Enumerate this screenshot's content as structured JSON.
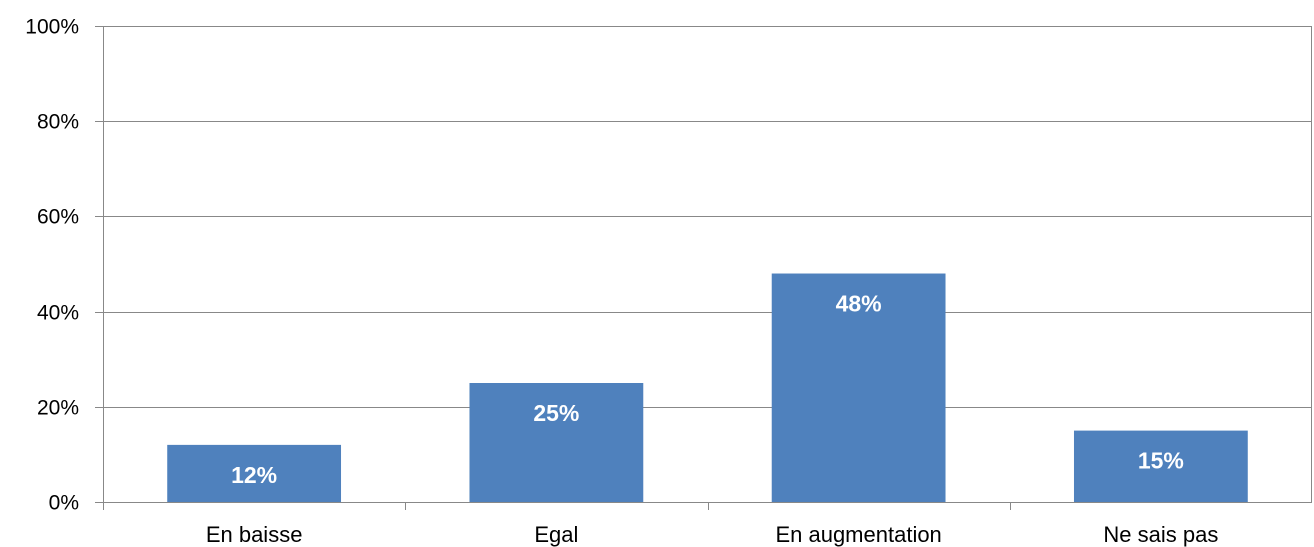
{
  "chart_data": {
    "type": "bar",
    "title": "",
    "xlabel": "",
    "ylabel": "",
    "categories": [
      "En baisse",
      "Egal",
      "En augmentation",
      "Ne sais pas"
    ],
    "values": [
      12,
      25,
      48,
      15
    ],
    "data_labels": [
      "12%",
      "25%",
      "48%",
      "15%"
    ],
    "ylim": [
      0,
      100
    ],
    "yticks": [
      0,
      20,
      40,
      60,
      80,
      100
    ],
    "ytick_labels": [
      "0%",
      "20%",
      "40%",
      "60%",
      "80%",
      "100%"
    ],
    "grid": true,
    "legend": "none",
    "bar_color": "#4F81BD",
    "grid_color": "#888888"
  }
}
